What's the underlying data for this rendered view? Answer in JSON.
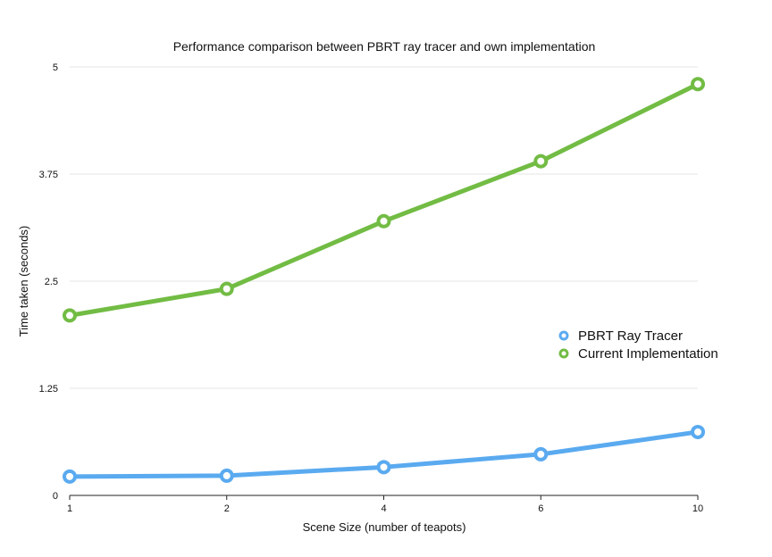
{
  "chart_data": {
    "type": "line",
    "title": "Performance comparison between PBRT ray tracer and own implementation",
    "xlabel": "Scene Size (number of teapots)",
    "ylabel": "Time taken (seconds)",
    "categories": [
      "1",
      "2",
      "4",
      "6",
      "10"
    ],
    "y_ticks": [
      "0",
      "1.25",
      "2.5",
      "3.75",
      "5"
    ],
    "ylim": [
      0,
      5
    ],
    "grid": true,
    "legend_position": "right",
    "series": [
      {
        "name": "PBRT Ray Tracer",
        "color": "#5aaaf0",
        "values": [
          0.22,
          0.23,
          0.33,
          0.48,
          0.74
        ]
      },
      {
        "name": "Current Implementation",
        "color": "#72bc44",
        "values": [
          2.1,
          2.41,
          3.2,
          3.9,
          4.8
        ]
      }
    ]
  }
}
